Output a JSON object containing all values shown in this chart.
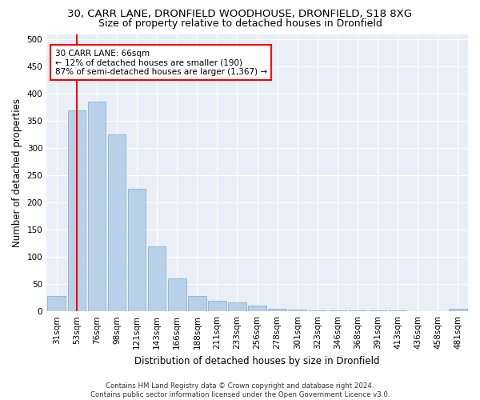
{
  "title_line1": "30, CARR LANE, DRONFIELD WOODHOUSE, DRONFIELD, S18 8XG",
  "title_line2": "Size of property relative to detached houses in Dronfield",
  "xlabel": "Distribution of detached houses by size in Dronfield",
  "ylabel": "Number of detached properties",
  "categories": [
    "31sqm",
    "53sqm",
    "76sqm",
    "98sqm",
    "121sqm",
    "143sqm",
    "166sqm",
    "188sqm",
    "211sqm",
    "233sqm",
    "256sqm",
    "278sqm",
    "301sqm",
    "323sqm",
    "346sqm",
    "368sqm",
    "391sqm",
    "413sqm",
    "436sqm",
    "458sqm",
    "481sqm"
  ],
  "values": [
    28,
    370,
    385,
    325,
    225,
    120,
    60,
    28,
    20,
    17,
    10,
    5,
    3,
    2,
    2,
    2,
    2,
    2,
    1,
    1,
    5
  ],
  "bar_color": "#b8d0e8",
  "bar_edge_color": "#7aaac8",
  "vline_color": "red",
  "annotation_text": "30 CARR LANE: 66sqm\n← 12% of detached houses are smaller (190)\n87% of semi-detached houses are larger (1,367) →",
  "annotation_box_color": "white",
  "annotation_box_edge": "red",
  "ylim": [
    0,
    510
  ],
  "yticks": [
    0,
    50,
    100,
    150,
    200,
    250,
    300,
    350,
    400,
    450,
    500
  ],
  "background_color": "#e8eff6",
  "grid_color": "white",
  "footnote": "Contains HM Land Registry data © Crown copyright and database right 2024.\nContains public sector information licensed under the Open Government Licence v3.0.",
  "title_fontsize": 9.5,
  "subtitle_fontsize": 9,
  "tick_fontsize": 7.5,
  "label_fontsize": 8.5,
  "annotation_fontsize": 7.5
}
